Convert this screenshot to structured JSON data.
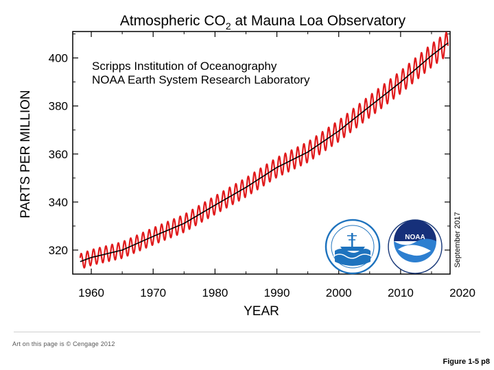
{
  "chart_data": {
    "type": "line",
    "title_main": "Atmospheric CO",
    "title_sub": "2",
    "title_rest": " at Mauna Loa Observatory",
    "xlabel": "YEAR",
    "ylabel": "PARTS PER MILLION",
    "xlim": [
      1957,
      2018
    ],
    "ylim": [
      310,
      411
    ],
    "xticks": [
      1960,
      1970,
      1980,
      1990,
      2000,
      2010,
      2020
    ],
    "yticks": [
      320,
      340,
      360,
      380,
      400
    ],
    "annotations": [
      "Scripps Institution of Oceanography",
      "NOAA Earth System Research Laboratory"
    ],
    "date_note": "September 2017",
    "logos": {
      "left": "scripps-institution-seal",
      "right": "noaa-logo",
      "noaa_text": "NOAA"
    },
    "series": [
      {
        "name": "Monthly mean CO2 (seasonal cycle)",
        "color": "#e0191b",
        "seasonal_amplitude_ppm": 3.2
      },
      {
        "name": "Seasonally corrected trend",
        "color": "#000000",
        "x": [
          1958,
          1960,
          1965,
          1970,
          1975,
          1980,
          1985,
          1990,
          1995,
          2000,
          2005,
          2010,
          2015,
          2017.7
        ],
        "values": [
          315.0,
          316.9,
          320.0,
          325.7,
          331.1,
          338.7,
          346.1,
          354.4,
          360.8,
          369.6,
          379.8,
          389.9,
          401.0,
          406.3
        ]
      }
    ]
  },
  "footer": {
    "credit": "Art on this page is © Cengage 2012",
    "figure_label": "Figure 1-5 p8"
  }
}
